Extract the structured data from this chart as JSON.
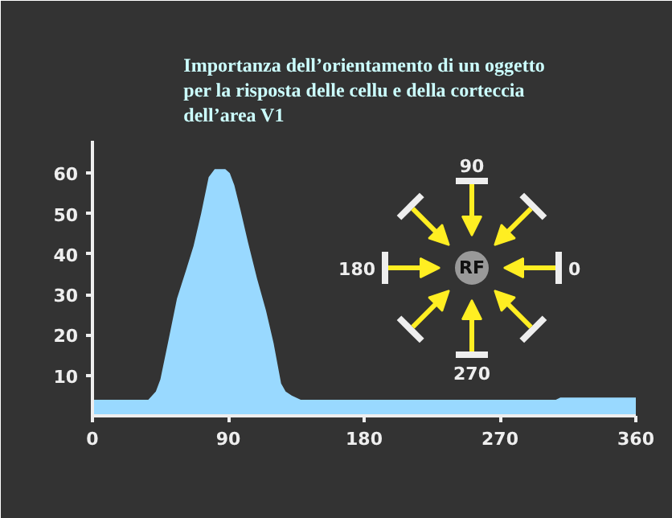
{
  "chart_data": {
    "type": "area",
    "title": "Importanza dell’orientamento di un oggetto\nper la risposta delle cellu e della corteccia\ndell’area V1",
    "x": [
      0,
      30,
      37,
      42,
      45,
      50,
      56,
      62,
      67,
      72,
      77,
      81,
      85,
      88,
      91,
      94,
      98,
      103,
      109,
      115,
      120,
      125,
      128,
      132,
      138,
      150,
      200,
      250,
      307,
      310,
      360
    ],
    "series": [
      {
        "color": "#99d9ff",
        "values": [
          4,
          4,
          4,
          6,
          9,
          18,
          29,
          36,
          42,
          50,
          59,
          61,
          61,
          61,
          60,
          57,
          51,
          43,
          34,
          26,
          18,
          8,
          6,
          5,
          4,
          4,
          4,
          4,
          4,
          4.5,
          4.5
        ]
      }
    ],
    "xlim": [
      0,
      360
    ],
    "ylim": [
      0,
      68
    ],
    "xticks": [
      0,
      90,
      180,
      270,
      360
    ],
    "yticks": [
      10,
      20,
      30,
      40,
      50,
      60
    ],
    "grid": false,
    "annotations": [
      "90",
      "180",
      "0",
      "270",
      "RF"
    ]
  }
}
